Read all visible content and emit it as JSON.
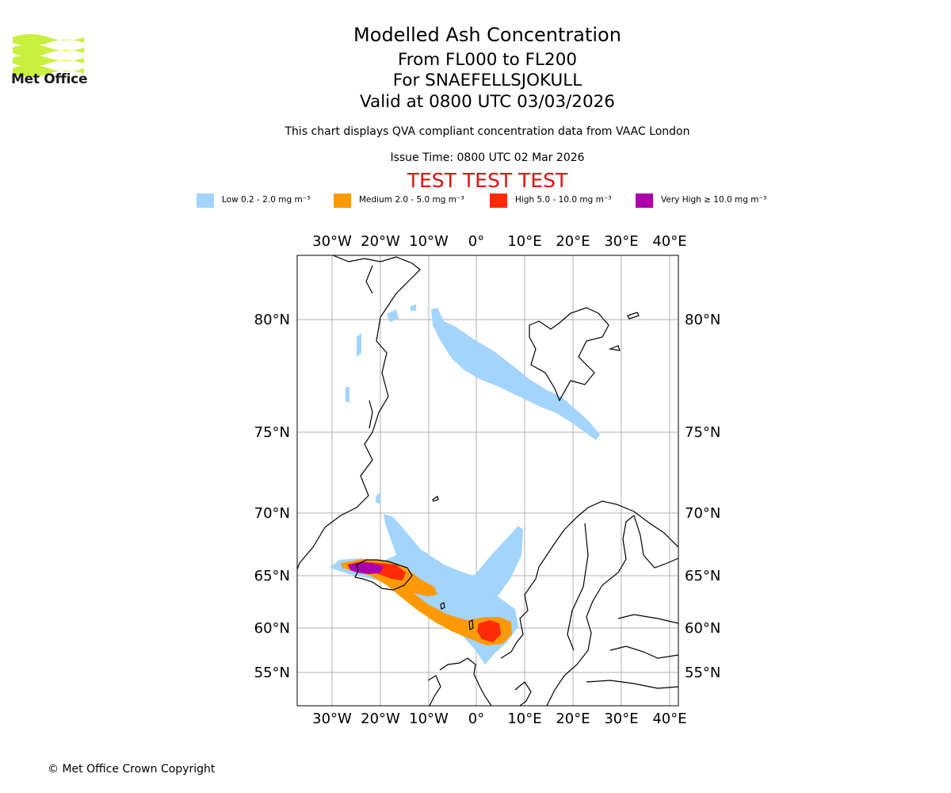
{
  "header": {
    "logo_text": "Met Office",
    "title": "Modelled Ash Concentration",
    "levels": "From FL000 to FL200",
    "volcano": "For SNAEFELLSJOKULL",
    "valid": "Valid at 0800 UTC 03/03/2026",
    "description": "This chart displays QVA compliant concentration data from VAAC London",
    "issue_time": "Issue Time: 0800 UTC 02 Mar 2026",
    "test_banner": "TEST TEST TEST"
  },
  "legend": [
    {
      "label": "Low 0.2 - 2.0 mg m⁻³",
      "color": "#a3d4fb"
    },
    {
      "label": "Medium 2.0 - 5.0 mg m⁻³",
      "color": "#ff9a06"
    },
    {
      "label": "High 5.0 - 10.0 mg m⁻³",
      "color": "#ff2a06"
    },
    {
      "label": "Very High ≥ 10.0 mg m⁻³",
      "color": "#aa00aa"
    }
  ],
  "map": {
    "lon_labels": [
      "30°W",
      "20°W",
      "10°W",
      "0°",
      "10°E",
      "20°E",
      "30°E",
      "40°E"
    ],
    "lat_labels": [
      "80°N",
      "75°N",
      "70°N",
      "65°N",
      "60°N",
      "55°N"
    ]
  },
  "footer": {
    "copyright": "© Met Office Crown Copyright"
  }
}
